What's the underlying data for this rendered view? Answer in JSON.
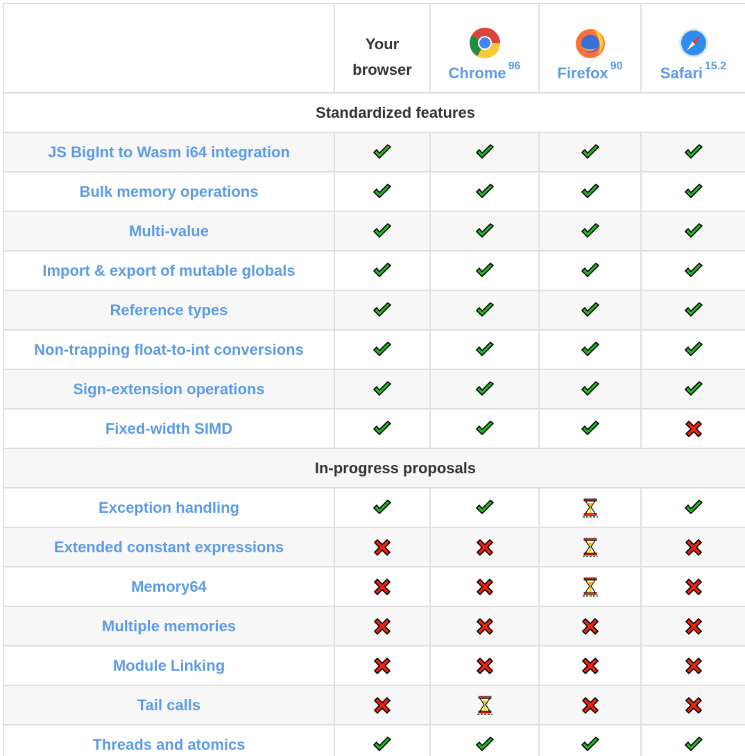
{
  "header": {
    "your_browser": "Your browser",
    "browsers": [
      {
        "name": "Chrome",
        "version": "96",
        "icon": "chrome-logo-icon"
      },
      {
        "name": "Firefox",
        "version": "90",
        "icon": "firefox-logo-icon"
      },
      {
        "name": "Safari",
        "version": "15.2",
        "icon": "safari-logo-icon"
      }
    ]
  },
  "colors": {
    "link": "#5b9be6",
    "yes": "#22bb22",
    "no": "#ee2211",
    "pending": "#f5c000"
  },
  "sections": [
    {
      "title": "Standardized features",
      "rows": [
        {
          "feature": "JS BigInt to Wasm i64 integration",
          "status": [
            "yes",
            "yes",
            "yes",
            "yes"
          ]
        },
        {
          "feature": "Bulk memory operations",
          "status": [
            "yes",
            "yes",
            "yes",
            "yes"
          ]
        },
        {
          "feature": "Multi-value",
          "status": [
            "yes",
            "yes",
            "yes",
            "yes"
          ]
        },
        {
          "feature": "Import & export of mutable globals",
          "status": [
            "yes",
            "yes",
            "yes",
            "yes"
          ]
        },
        {
          "feature": "Reference types",
          "status": [
            "yes",
            "yes",
            "yes",
            "yes"
          ]
        },
        {
          "feature": "Non-trapping float-to-int conversions",
          "status": [
            "yes",
            "yes",
            "yes",
            "yes"
          ]
        },
        {
          "feature": "Sign-extension operations",
          "status": [
            "yes",
            "yes",
            "yes",
            "yes"
          ]
        },
        {
          "feature": "Fixed-width SIMD",
          "status": [
            "yes",
            "yes",
            "yes",
            "no"
          ]
        }
      ]
    },
    {
      "title": "In-progress proposals",
      "rows": [
        {
          "feature": "Exception handling",
          "status": [
            "yes",
            "yes",
            "pending",
            "yes"
          ]
        },
        {
          "feature": "Extended constant expressions",
          "status": [
            "no",
            "no",
            "pending",
            "no"
          ]
        },
        {
          "feature": "Memory64",
          "status": [
            "no",
            "no",
            "pending",
            "no"
          ]
        },
        {
          "feature": "Multiple memories",
          "status": [
            "no",
            "no",
            "no",
            "no"
          ]
        },
        {
          "feature": "Module Linking",
          "status": [
            "no",
            "no",
            "no",
            "no"
          ]
        },
        {
          "feature": "Tail calls",
          "status": [
            "no",
            "pending",
            "no",
            "no"
          ]
        },
        {
          "feature": "Threads and atomics",
          "status": [
            "yes",
            "yes",
            "yes",
            "yes"
          ]
        }
      ]
    }
  ]
}
